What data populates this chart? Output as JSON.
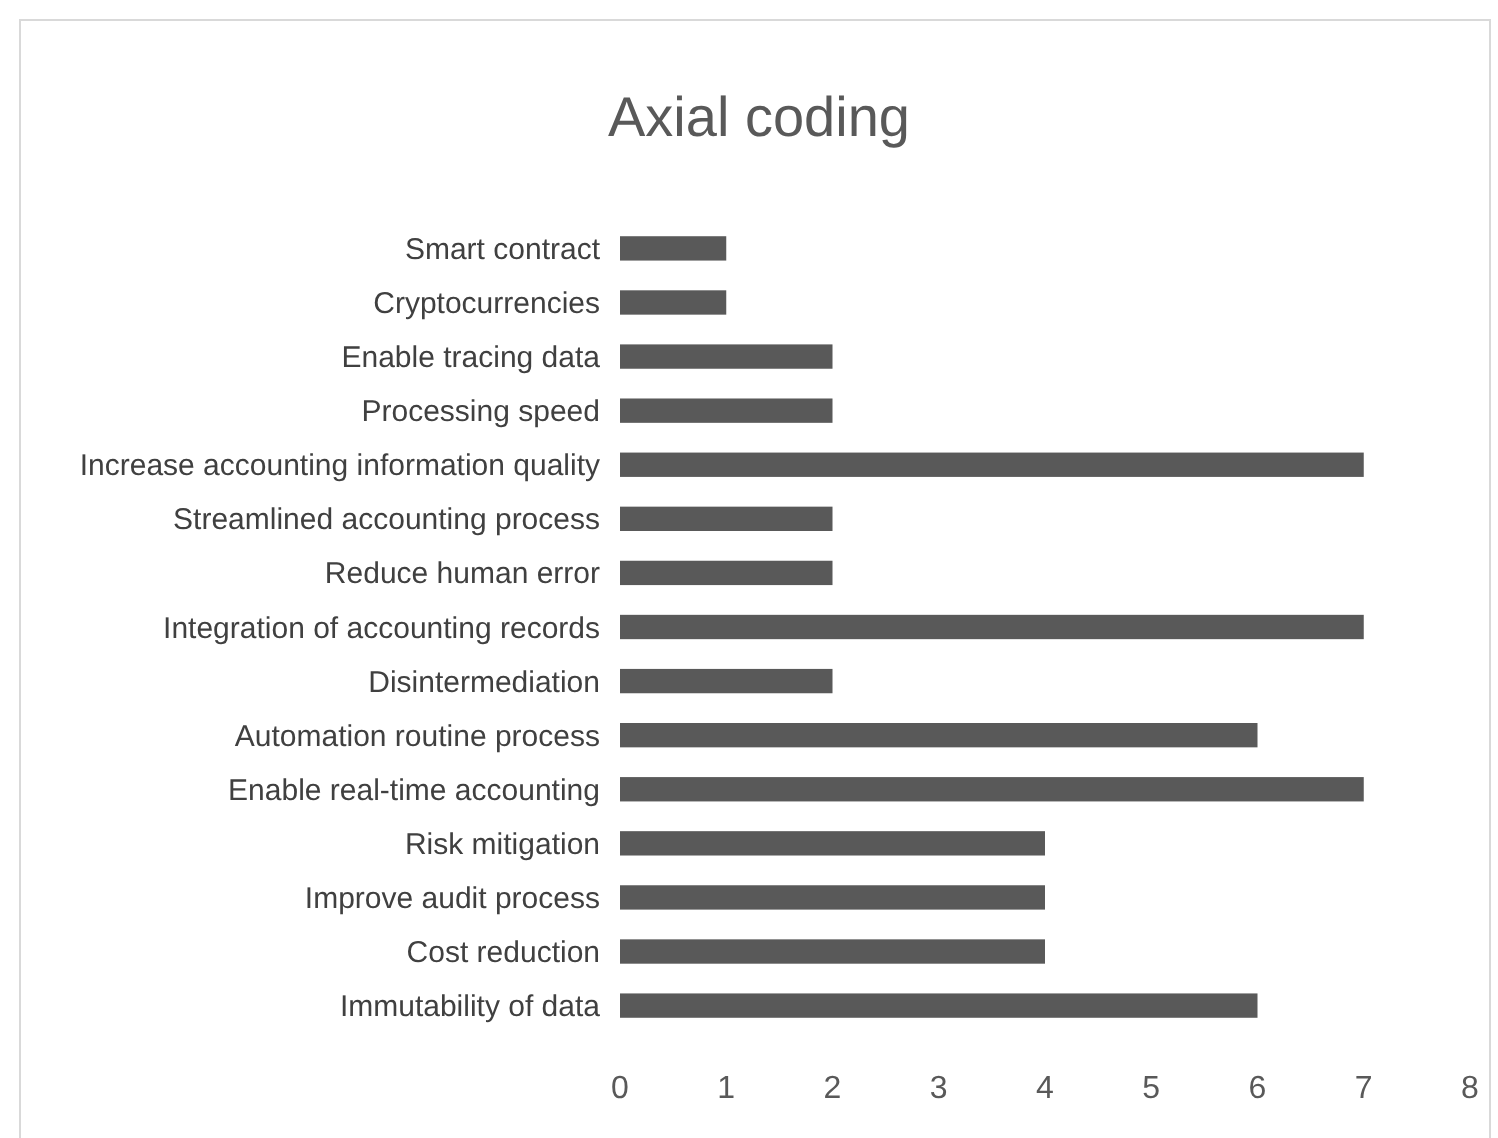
{
  "chart_data": {
    "type": "bar",
    "orientation": "horizontal",
    "title": "Axial coding",
    "categories": [
      "Smart contract",
      "Cryptocurrencies",
      "Enable tracing data",
      "Processing speed",
      "Increase accounting information quality",
      "Streamlined accounting process",
      "Reduce human error",
      "Integration of accounting records",
      "Disintermediation",
      "Automation routine process",
      "Enable real-time accounting",
      "Risk mitigation",
      "Improve audit process",
      "Cost reduction",
      "Immutability of data"
    ],
    "values": [
      1,
      1,
      2,
      2,
      7,
      2,
      2,
      7,
      2,
      6,
      7,
      4,
      4,
      4,
      6
    ],
    "color": "#595959",
    "xlim": [
      0,
      8
    ],
    "xticks": [
      0,
      1,
      2,
      3,
      4,
      5,
      6,
      7,
      8
    ],
    "grid": false
  }
}
